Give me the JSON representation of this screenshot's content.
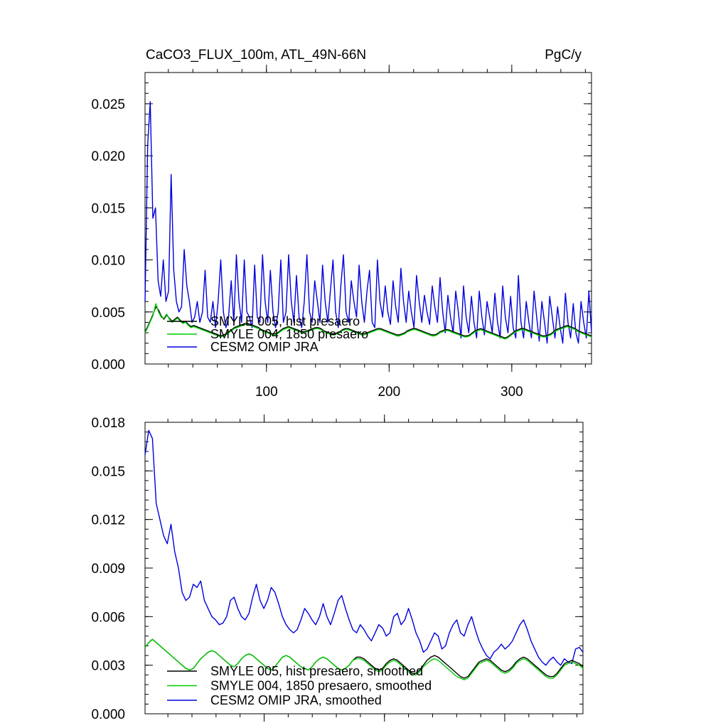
{
  "figure": {
    "title_left": "CaCO3_FLUX_100m, ATL_49N-66N",
    "title_right": "PgC/y"
  },
  "chart_data": [
    {
      "type": "line",
      "x_range": [
        1,
        365
      ],
      "xlim": [
        1,
        365
      ],
      "ylim": [
        0.0,
        0.028
      ],
      "x_ticks": [
        100,
        200,
        300
      ],
      "x_tick_labels": [
        "100",
        "200",
        "300"
      ],
      "y_ticks": [
        0.0,
        0.005,
        0.01,
        0.015,
        0.02,
        0.025
      ],
      "y_tick_labels": [
        "0.000",
        "0.005",
        "0.010",
        "0.015",
        "0.020",
        "0.025"
      ],
      "legend_placement": "bottom-left",
      "series": [
        {
          "name": "SMYLE 005, hist presaero",
          "color": "#000000",
          "values": [
            0.0031,
            0.0036,
            0.0042,
            0.0048,
            0.0055,
            0.0052,
            0.0046,
            0.0043,
            0.0047,
            0.0044,
            0.0041,
            0.0043,
            0.0045,
            0.0042,
            0.004,
            0.0041,
            0.0038,
            0.0036,
            0.0037,
            0.0036,
            0.0035,
            0.0034,
            0.0033,
            0.0032,
            0.0031,
            0.003,
            0.0029,
            0.0028,
            0.0027,
            0.0028,
            0.0029,
            0.0031,
            0.0033,
            0.0035,
            0.0036,
            0.0037,
            0.0038,
            0.0039,
            0.0039,
            0.0038,
            0.0037,
            0.0036,
            0.0035,
            0.0033,
            0.0032,
            0.0031,
            0.003,
            0.0029,
            0.0029,
            0.003,
            0.0032,
            0.0034,
            0.0035,
            0.0036,
            0.0035,
            0.0034,
            0.0033,
            0.0032,
            0.0031,
            0.0031,
            0.0032,
            0.0033,
            0.0034,
            0.0035,
            0.0035,
            0.0034,
            0.0032,
            0.0031,
            0.003,
            0.0029,
            0.0029,
            0.003,
            0.0031,
            0.0033,
            0.0034,
            0.0034,
            0.0033,
            0.0032,
            0.0031,
            0.003,
            0.0029,
            0.0029,
            0.003,
            0.0031,
            0.0032,
            0.0033,
            0.0034,
            0.0034,
            0.0033,
            0.0032,
            0.0031,
            0.003,
            0.0029,
            0.0028,
            0.0028,
            0.0029,
            0.003,
            0.0032,
            0.0033,
            0.0034,
            0.0034,
            0.0033,
            0.0032,
            0.0031,
            0.003,
            0.0029,
            0.0028,
            0.0028,
            0.0029,
            0.0031,
            0.0032,
            0.0033,
            0.0033,
            0.0032,
            0.0031,
            0.003,
            0.0029,
            0.0028,
            0.0027,
            0.0027,
            0.0028,
            0.003,
            0.0032,
            0.0033,
            0.0034,
            0.0033,
            0.0032,
            0.0031,
            0.003,
            0.0029,
            0.0028,
            0.0027,
            0.0026,
            0.0025,
            0.0026,
            0.0028,
            0.003,
            0.0032,
            0.0033,
            0.0034,
            0.0034,
            0.0033,
            0.0032,
            0.0031,
            0.003,
            0.0029,
            0.0028,
            0.0027,
            0.0027,
            0.0028,
            0.0029,
            0.0031,
            0.0033,
            0.0034,
            0.0035,
            0.0036,
            0.0037,
            0.0036,
            0.0035,
            0.0034,
            0.0032,
            0.0031,
            0.003,
            0.0029,
            0.0028,
            0.0027
          ]
        },
        {
          "name": "SMYLE 004, 1850 presaero",
          "color": "#00cc00",
          "values": [
            0.003,
            0.0035,
            0.0041,
            0.0047,
            0.0058,
            0.005,
            0.0045,
            0.0044,
            0.0048,
            0.0043,
            0.004,
            0.0042,
            0.0044,
            0.0041,
            0.0039,
            0.004,
            0.0037,
            0.0035,
            0.0036,
            0.0035,
            0.0034,
            0.0033,
            0.0032,
            0.0031,
            0.003,
            0.0029,
            0.0028,
            0.0027,
            0.0026,
            0.0027,
            0.0028,
            0.003,
            0.0032,
            0.0034,
            0.0035,
            0.0036,
            0.0037,
            0.0038,
            0.0038,
            0.0037,
            0.0036,
            0.0035,
            0.0034,
            0.0032,
            0.0031,
            0.003,
            0.0029,
            0.0028,
            0.0028,
            0.0029,
            0.0031,
            0.0033,
            0.0034,
            0.0035,
            0.0034,
            0.0033,
            0.0032,
            0.0031,
            0.003,
            0.003,
            0.0031,
            0.0032,
            0.0033,
            0.0034,
            0.0034,
            0.0033,
            0.0031,
            0.003,
            0.0029,
            0.0028,
            0.0028,
            0.0029,
            0.003,
            0.0032,
            0.0033,
            0.0033,
            0.0032,
            0.0031,
            0.003,
            0.0029,
            0.0028,
            0.0028,
            0.0029,
            0.003,
            0.0031,
            0.0032,
            0.0033,
            0.0033,
            0.0032,
            0.0031,
            0.003,
            0.0029,
            0.0028,
            0.0027,
            0.0027,
            0.0028,
            0.0029,
            0.0031,
            0.0032,
            0.0033,
            0.0033,
            0.0032,
            0.0031,
            0.003,
            0.0029,
            0.0028,
            0.0027,
            0.0027,
            0.0028,
            0.003,
            0.0031,
            0.0032,
            0.0032,
            0.0031,
            0.003,
            0.0029,
            0.0028,
            0.0027,
            0.0026,
            0.0026,
            0.0027,
            0.0029,
            0.0031,
            0.0032,
            0.0033,
            0.0032,
            0.0031,
            0.003,
            0.0029,
            0.0028,
            0.0027,
            0.0026,
            0.0025,
            0.0024,
            0.0025,
            0.0027,
            0.0029,
            0.0031,
            0.0032,
            0.0033,
            0.0033,
            0.0032,
            0.0031,
            0.003,
            0.0029,
            0.0028,
            0.0027,
            0.0026,
            0.0026,
            0.0027,
            0.0028,
            0.003,
            0.0032,
            0.0033,
            0.0034,
            0.0035,
            0.0036,
            0.0035,
            0.0034,
            0.0033,
            0.0031,
            0.003,
            0.0029,
            0.0028,
            0.0027,
            0.0026
          ]
        },
        {
          "name": "CESM2 OMIP JRA",
          "color": "#0000dd",
          "values": [
            0.006,
            0.021,
            0.0252,
            0.014,
            0.015,
            0.008,
            0.0065,
            0.01,
            0.006,
            0.007,
            0.0182,
            0.009,
            0.006,
            0.005,
            0.0055,
            0.011,
            0.0075,
            0.006,
            0.004,
            0.0045,
            0.006,
            0.004,
            0.005,
            0.009,
            0.0045,
            0.004,
            0.006,
            0.0035,
            0.006,
            0.01,
            0.005,
            0.0035,
            0.0045,
            0.008,
            0.004,
            0.0105,
            0.006,
            0.004,
            0.01,
            0.005,
            0.0045,
            0.0035,
            0.0095,
            0.0045,
            0.004,
            0.0105,
            0.006,
            0.004,
            0.009,
            0.005,
            0.0035,
            0.005,
            0.01,
            0.004,
            0.005,
            0.0105,
            0.006,
            0.004,
            0.0085,
            0.0045,
            0.0035,
            0.006,
            0.0105,
            0.005,
            0.004,
            0.008,
            0.006,
            0.004,
            0.0095,
            0.006,
            0.004,
            0.007,
            0.01,
            0.005,
            0.0035,
            0.0075,
            0.0105,
            0.005,
            0.004,
            0.008,
            0.006,
            0.0045,
            0.0095,
            0.006,
            0.004,
            0.007,
            0.009,
            0.004,
            0.0035,
            0.01,
            0.006,
            0.0045,
            0.0075,
            0.005,
            0.0038,
            0.008,
            0.0055,
            0.004,
            0.0092,
            0.006,
            0.004,
            0.007,
            0.005,
            0.0035,
            0.0085,
            0.006,
            0.004,
            0.0066,
            0.005,
            0.0038,
            0.0075,
            0.0055,
            0.004,
            0.0083,
            0.005,
            0.003,
            0.0066,
            0.0045,
            0.003,
            0.007,
            0.005,
            0.0025,
            0.0075,
            0.0045,
            0.003,
            0.0065,
            0.004,
            0.0025,
            0.007,
            0.0045,
            0.0028,
            0.006,
            0.0045,
            0.003,
            0.0068,
            0.004,
            0.0025,
            0.0075,
            0.0045,
            0.003,
            0.0065,
            0.0035,
            0.0025,
            0.0085,
            0.004,
            0.0025,
            0.006,
            0.004,
            0.0025,
            0.007,
            0.0045,
            0.0022,
            0.006,
            0.004,
            0.002,
            0.0065,
            0.0045,
            0.0025,
            0.0055,
            0.0035,
            0.002,
            0.0068,
            0.004,
            0.0025,
            0.0058,
            0.003,
            0.002,
            0.006,
            0.004,
            0.0025,
            0.007,
            0.003
          ]
        }
      ]
    },
    {
      "type": "line",
      "x_range": [
        1,
        365
      ],
      "xlim": [
        1,
        365
      ],
      "ylim": [
        0.0,
        0.018
      ],
      "x_ticks": [
        100,
        200,
        300
      ],
      "x_tick_labels": [
        "",
        "",
        ""
      ],
      "y_ticks": [
        0.0,
        0.003,
        0.006,
        0.009,
        0.012,
        0.015,
        0.018
      ],
      "y_tick_labels": [
        "0.000",
        "0.003",
        "0.006",
        "0.009",
        "0.012",
        "0.015",
        "0.018"
      ],
      "legend_placement": "bottom-left",
      "series": [
        {
          "name": "SMYLE 005, hist presaero, smoothed",
          "color": "#000000",
          "values": [
            0.0041,
            0.0044,
            0.0046,
            0.0044,
            0.0042,
            0.004,
            0.0038,
            0.0036,
            0.0034,
            0.0032,
            0.003,
            0.0028,
            0.0027,
            0.0028,
            0.0031,
            0.0034,
            0.0036,
            0.0038,
            0.0039,
            0.0038,
            0.0036,
            0.0034,
            0.0032,
            0.003,
            0.0029,
            0.0031,
            0.0034,
            0.0036,
            0.0037,
            0.0036,
            0.0034,
            0.0032,
            0.003,
            0.0028,
            0.0027,
            0.0029,
            0.0032,
            0.0035,
            0.0036,
            0.0035,
            0.0033,
            0.0031,
            0.0029,
            0.0028,
            0.0027,
            0.0029,
            0.0032,
            0.0034,
            0.0035,
            0.0034,
            0.0032,
            0.003,
            0.0028,
            0.0027,
            0.0028,
            0.003,
            0.0033,
            0.0035,
            0.0035,
            0.0034,
            0.0032,
            0.003,
            0.0028,
            0.0027,
            0.0028,
            0.0031,
            0.0033,
            0.0034,
            0.0033,
            0.0031,
            0.0029,
            0.0027,
            0.0025,
            0.0025,
            0.0027,
            0.003,
            0.0033,
            0.0035,
            0.0036,
            0.0035,
            0.0033,
            0.0031,
            0.0029,
            0.0027,
            0.0025,
            0.0023,
            0.0022,
            0.0023,
            0.0026,
            0.0029,
            0.0032,
            0.0033,
            0.0034,
            0.0033,
            0.0031,
            0.0029,
            0.0027,
            0.0026,
            0.0027,
            0.0029,
            0.0032,
            0.0034,
            0.0035,
            0.0034,
            0.0032,
            0.003,
            0.0028,
            0.0026,
            0.0024,
            0.0023,
            0.0023,
            0.0025,
            0.0028,
            0.0031,
            0.0032,
            0.0033,
            0.0032,
            0.0031,
            0.0029
          ]
        },
        {
          "name": "SMYLE 004, 1850 presaero, smoothed",
          "color": "#00cc00",
          "values": [
            0.0041,
            0.0044,
            0.0046,
            0.0044,
            0.0042,
            0.004,
            0.0038,
            0.0036,
            0.0034,
            0.0032,
            0.003,
            0.0028,
            0.0027,
            0.0028,
            0.0031,
            0.0034,
            0.0036,
            0.0038,
            0.0039,
            0.0038,
            0.0036,
            0.0034,
            0.0032,
            0.003,
            0.0029,
            0.0031,
            0.0034,
            0.0036,
            0.0037,
            0.0036,
            0.0034,
            0.0032,
            0.003,
            0.0028,
            0.0027,
            0.0029,
            0.0032,
            0.0035,
            0.0036,
            0.0035,
            0.0033,
            0.0031,
            0.0029,
            0.0028,
            0.0027,
            0.0029,
            0.0032,
            0.0034,
            0.0035,
            0.0034,
            0.0032,
            0.003,
            0.0028,
            0.0027,
            0.0028,
            0.003,
            0.0033,
            0.0034,
            0.0034,
            0.0033,
            0.0031,
            0.0029,
            0.0027,
            0.0026,
            0.0027,
            0.003,
            0.0032,
            0.0033,
            0.0032,
            0.003,
            0.0028,
            0.0026,
            0.0024,
            0.0024,
            0.0026,
            0.0029,
            0.0031,
            0.0033,
            0.0034,
            0.0033,
            0.0031,
            0.0029,
            0.0027,
            0.0025,
            0.0023,
            0.0022,
            0.0021,
            0.0022,
            0.0025,
            0.0028,
            0.0031,
            0.0032,
            0.0033,
            0.0032,
            0.003,
            0.0028,
            0.0026,
            0.0025,
            0.0026,
            0.0028,
            0.0031,
            0.0033,
            0.0034,
            0.0033,
            0.0031,
            0.0029,
            0.0027,
            0.0025,
            0.0023,
            0.0022,
            0.0022,
            0.0024,
            0.0027,
            0.003,
            0.0031,
            0.0032,
            0.0031,
            0.003,
            0.0028
          ]
        },
        {
          "name": "CESM2 OMIP JRA, smoothed",
          "color": "#0000dd",
          "values": [
            0.016,
            0.0175,
            0.017,
            0.013,
            0.012,
            0.011,
            0.0105,
            0.0117,
            0.01,
            0.009,
            0.0075,
            0.007,
            0.0072,
            0.008,
            0.0078,
            0.0082,
            0.007,
            0.0065,
            0.006,
            0.0058,
            0.0055,
            0.0056,
            0.006,
            0.007,
            0.0072,
            0.0065,
            0.006,
            0.0058,
            0.0062,
            0.0072,
            0.008,
            0.007,
            0.0065,
            0.007,
            0.0078,
            0.0075,
            0.0068,
            0.006,
            0.0055,
            0.0052,
            0.005,
            0.0052,
            0.0058,
            0.0065,
            0.0062,
            0.0058,
            0.0055,
            0.006,
            0.0068,
            0.006,
            0.0055,
            0.0062,
            0.007,
            0.0073,
            0.0065,
            0.0058,
            0.0052,
            0.005,
            0.0055,
            0.0052,
            0.0048,
            0.0045,
            0.005,
            0.0055,
            0.0053,
            0.0048,
            0.005,
            0.006,
            0.0062,
            0.0055,
            0.0058,
            0.0065,
            0.0058,
            0.005,
            0.0045,
            0.0038,
            0.004,
            0.0045,
            0.005,
            0.0048,
            0.004,
            0.0042,
            0.005,
            0.0055,
            0.0058,
            0.005,
            0.0048,
            0.0055,
            0.006,
            0.0052,
            0.0045,
            0.004,
            0.0036,
            0.0034,
            0.0038,
            0.004,
            0.0043,
            0.004,
            0.0042,
            0.0045,
            0.005,
            0.0055,
            0.0058,
            0.0052,
            0.0045,
            0.004,
            0.0035,
            0.0032,
            0.003,
            0.0033,
            0.0035,
            0.0032,
            0.003,
            0.0034,
            0.0032,
            0.0031,
            0.004,
            0.0041,
            0.0038
          ]
        }
      ]
    }
  ]
}
